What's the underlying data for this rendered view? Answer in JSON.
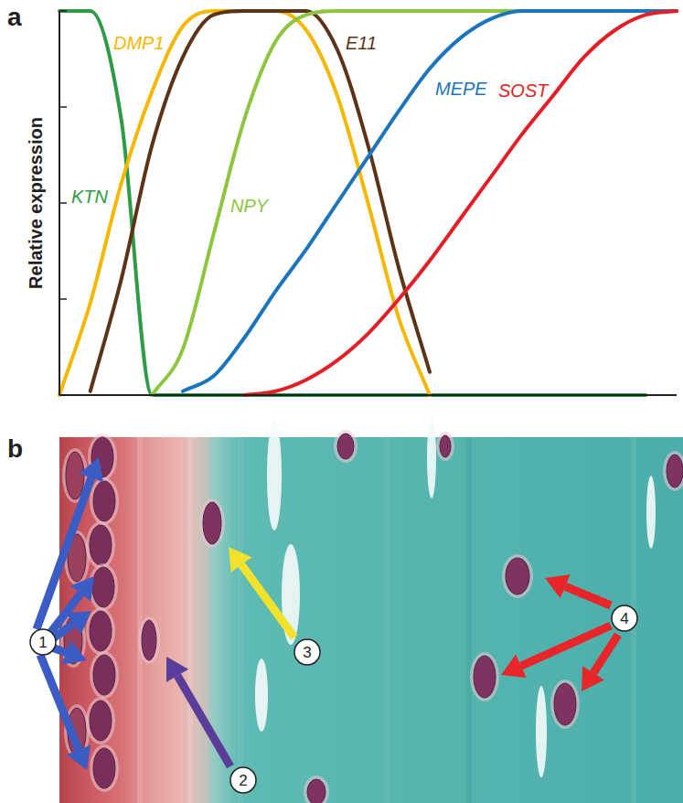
{
  "chart_data": {
    "type": "line",
    "ylabel": "Relative expression",
    "xlim": [
      0,
      100
    ],
    "ylim": [
      0,
      1
    ],
    "yticks": [
      0,
      0.25,
      0.5,
      0.75,
      1
    ],
    "tick_labels": false,
    "grid": false,
    "x": [
      0,
      5,
      10,
      15,
      20,
      25,
      30,
      35,
      40,
      45,
      50,
      55,
      60,
      65,
      70,
      75,
      80,
      85,
      90,
      95,
      100
    ],
    "series": [
      {
        "name": "KTN",
        "color": "#2e9b47",
        "values": [
          1,
          1,
          0.72,
          0,
          0,
          0,
          0,
          0,
          0,
          0,
          0,
          0,
          0,
          0,
          0,
          0,
          0,
          0,
          0,
          0,
          null
        ]
      },
      {
        "name": "DMP1",
        "color": "#f5b700",
        "values": [
          0,
          0.24,
          0.55,
          0.79,
          0.96,
          1,
          1,
          1,
          0.95,
          0.78,
          0.5,
          0.2,
          0,
          null,
          null,
          null,
          null,
          null,
          null,
          null,
          null
        ]
      },
      {
        "name": "E11",
        "color": "#5c3317",
        "values": [
          null,
          0.01,
          0.3,
          0.65,
          0.88,
          0.99,
          1,
          1,
          1,
          0.9,
          0.65,
          0.33,
          0.06,
          null,
          null,
          null,
          null,
          null,
          null,
          null,
          null
        ]
      },
      {
        "name": "NPY",
        "color": "#8cc63f",
        "values": [
          null,
          null,
          null,
          0,
          0.12,
          0.42,
          0.72,
          0.92,
          0.99,
          1,
          1,
          1,
          1,
          1,
          1,
          1,
          1,
          1,
          1,
          1,
          1
        ]
      },
      {
        "name": "MEPE",
        "color": "#1b75bc",
        "values": [
          null,
          null,
          null,
          null,
          0.01,
          0.05,
          0.15,
          0.27,
          0.38,
          0.5,
          0.62,
          0.74,
          0.85,
          0.93,
          0.98,
          1,
          1,
          1,
          1,
          1,
          1
        ]
      },
      {
        "name": "SOST",
        "color": "#e41e26",
        "values": [
          null,
          null,
          null,
          null,
          null,
          null,
          0,
          0.01,
          0.04,
          0.09,
          0.16,
          0.25,
          0.35,
          0.46,
          0.57,
          0.68,
          0.78,
          0.88,
          0.95,
          0.99,
          1
        ]
      }
    ]
  },
  "figure": {
    "panel_labels": [
      "a",
      "b"
    ],
    "micrograph": {
      "callouts": [
        {
          "number": 1,
          "color": "#3b5cc4"
        },
        {
          "number": 2,
          "color": "#5a3d9a"
        },
        {
          "number": 3,
          "color": "#f2e22c"
        },
        {
          "number": 4,
          "color": "#e8262a"
        }
      ]
    }
  }
}
